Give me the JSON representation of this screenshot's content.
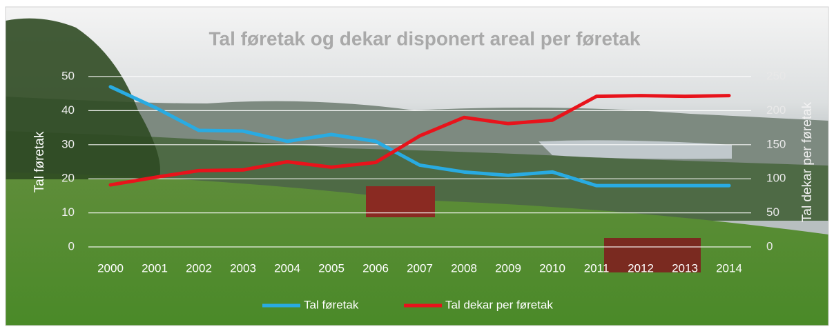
{
  "chart_data": {
    "type": "line",
    "title": "Tal føretak og dekar disponert areal per føretak",
    "y_label": "Tal føretak",
    "y2_label": "Tal dekar per føretak",
    "categories": [
      "2000",
      "2001",
      "2002",
      "2003",
      "2004",
      "2005",
      "2006",
      "2007",
      "2008",
      "2009",
      "2010",
      "2011",
      "2012",
      "2013",
      "2014"
    ],
    "series": [
      {
        "name": "Tal føretak",
        "color": "#29abe2",
        "values": [
          47,
          41,
          34.2,
          34,
          31,
          33,
          31,
          24,
          22,
          21,
          22,
          18,
          18,
          18,
          18
        ]
      },
      {
        "name": "Tal dekar per føretak",
        "color": "#e8131b",
        "axis": "y2",
        "values": [
          91,
          102,
          112,
          113,
          125,
          117,
          124,
          163,
          190,
          181,
          186,
          221,
          222,
          221,
          222
        ]
      }
    ],
    "ylim": [
      0,
      50
    ],
    "yticks": [
      0,
      10,
      20,
      30,
      40,
      50
    ],
    "y2lim": [
      0,
      250
    ],
    "y2ticks": [
      0,
      50,
      100,
      150,
      200,
      250
    ],
    "grid": true,
    "legend": "bottom"
  }
}
